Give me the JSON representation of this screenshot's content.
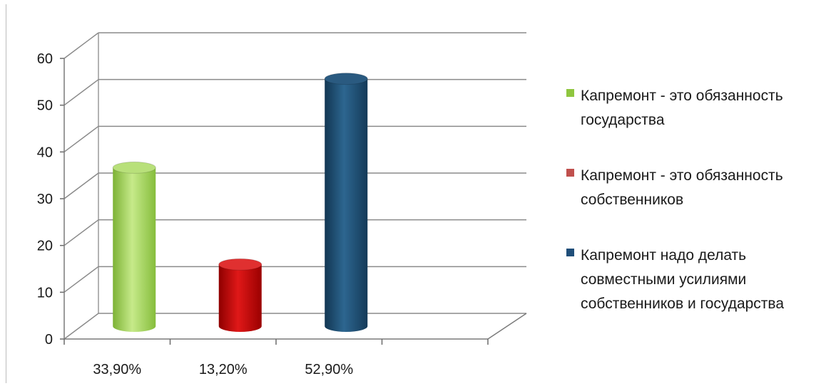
{
  "chart_data": {
    "type": "bar",
    "style": "3d-cylinder",
    "categories": [
      "33,90%",
      "13,20%",
      "52,90%"
    ],
    "series": [
      {
        "name": "Капремонт - это обязанность государства",
        "values": [
          33.9,
          null,
          null
        ],
        "color": "#8fc63f"
      },
      {
        "name": "Капремонт - это обязанность собственников",
        "values": [
          null,
          13.2,
          null
        ],
        "color": "#c00000"
      },
      {
        "name": "Капремонт надо делать совместными усилиями собственников и государства",
        "values": [
          null,
          null,
          52.9
        ],
        "color": "#1a4a6e"
      }
    ],
    "ylim": [
      0,
      60
    ],
    "yticks": [
      "0",
      "10",
      "20",
      "30",
      "40",
      "50",
      "60"
    ],
    "grid": true,
    "legend_position": "right"
  },
  "legend": {
    "items": [
      {
        "lines": [
          "Капремонт - это обязанность",
          "государства"
        ],
        "color": "#8fc63f"
      },
      {
        "lines": [
          "Капремонт - это обязанность",
          "собственников"
        ],
        "color": "#c0504d"
      },
      {
        "lines": [
          "Капремонт надо делать",
          "совместными усилиями",
          "собственников и государства"
        ],
        "color": "#1f4e79"
      }
    ]
  }
}
